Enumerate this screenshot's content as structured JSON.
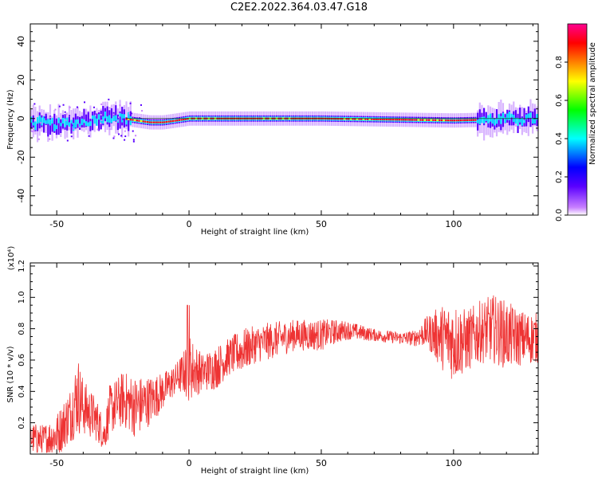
{
  "title": "C2E2.2022.364.03.47.G18",
  "chart_data": [
    {
      "type": "heatmap",
      "xlabel": "Height of straight line (km)",
      "ylabel": "Frequency (Hz)",
      "xlim": [
        -60,
        132
      ],
      "ylim": [
        -50,
        49
      ],
      "xticks": [
        -50,
        0,
        50,
        100
      ],
      "yticks": [
        -40,
        -20,
        0,
        20,
        40
      ],
      "colorbar": {
        "label": "Normalized spectral amplitude",
        "range": [
          0.0,
          1.0
        ],
        "ticks": [
          "0.0",
          "0.2",
          "0.4",
          "0.6",
          "0.8"
        ],
        "colors": [
          "#ffffff",
          "#c880ff",
          "#5a00ff",
          "#0000ff",
          "#00ffff",
          "#00ff00",
          "#ffff00",
          "#ff8000",
          "#ff0000",
          "#ff0090"
        ]
      },
      "trace": {
        "description_points_x": [
          -60,
          -50,
          -40,
          -35,
          -30,
          -25,
          -15,
          -10,
          0,
          50,
          100,
          132
        ],
        "frequency_hz": [
          -2,
          -3,
          -2,
          0,
          1,
          0,
          -2,
          -2,
          0,
          0,
          -1,
          0
        ]
      }
    },
    {
      "type": "line",
      "xlabel": "Height of straight line (km)",
      "ylabel": "SNR (10 * v/v)",
      "y_multiplier": "(x10⁴)",
      "xlim": [
        -60,
        132
      ],
      "ylim": [
        0.0,
        1.22
      ],
      "xticks": [
        -50,
        0,
        50,
        100
      ],
      "yticks": [
        0.2,
        0.4,
        0.6,
        0.8,
        1.0,
        1.2
      ],
      "series": [
        {
          "color": "#ee3333",
          "x": [
            -60,
            -55,
            -50,
            -45,
            -42,
            -40,
            -35,
            -32,
            -30,
            -25,
            -20,
            -15,
            -10,
            -5,
            -2,
            0,
            5,
            10,
            15,
            20,
            25,
            30,
            40,
            50,
            55,
            60,
            70,
            80,
            85,
            90,
            95,
            100,
            105,
            110,
            115,
            120,
            125,
            132
          ],
          "y": [
            0.1,
            0.09,
            0.12,
            0.25,
            0.38,
            0.3,
            0.22,
            0.12,
            0.28,
            0.35,
            0.3,
            0.34,
            0.4,
            0.48,
            0.52,
            0.55,
            0.52,
            0.55,
            0.62,
            0.66,
            0.7,
            0.72,
            0.76,
            0.76,
            0.78,
            0.79,
            0.76,
            0.74,
            0.74,
            0.78,
            0.75,
            0.72,
            0.72,
            0.78,
            0.8,
            0.76,
            0.74,
            0.74
          ],
          "amplitude": [
            0.1,
            0.1,
            0.14,
            0.18,
            0.26,
            0.18,
            0.14,
            0.1,
            0.16,
            0.18,
            0.2,
            0.16,
            0.12,
            0.1,
            0.14,
            0.22,
            0.12,
            0.14,
            0.12,
            0.14,
            0.12,
            0.12,
            0.1,
            0.1,
            0.08,
            0.06,
            0.04,
            0.04,
            0.05,
            0.1,
            0.2,
            0.26,
            0.2,
            0.2,
            0.22,
            0.22,
            0.18,
            0.16
          ]
        }
      ]
    }
  ]
}
